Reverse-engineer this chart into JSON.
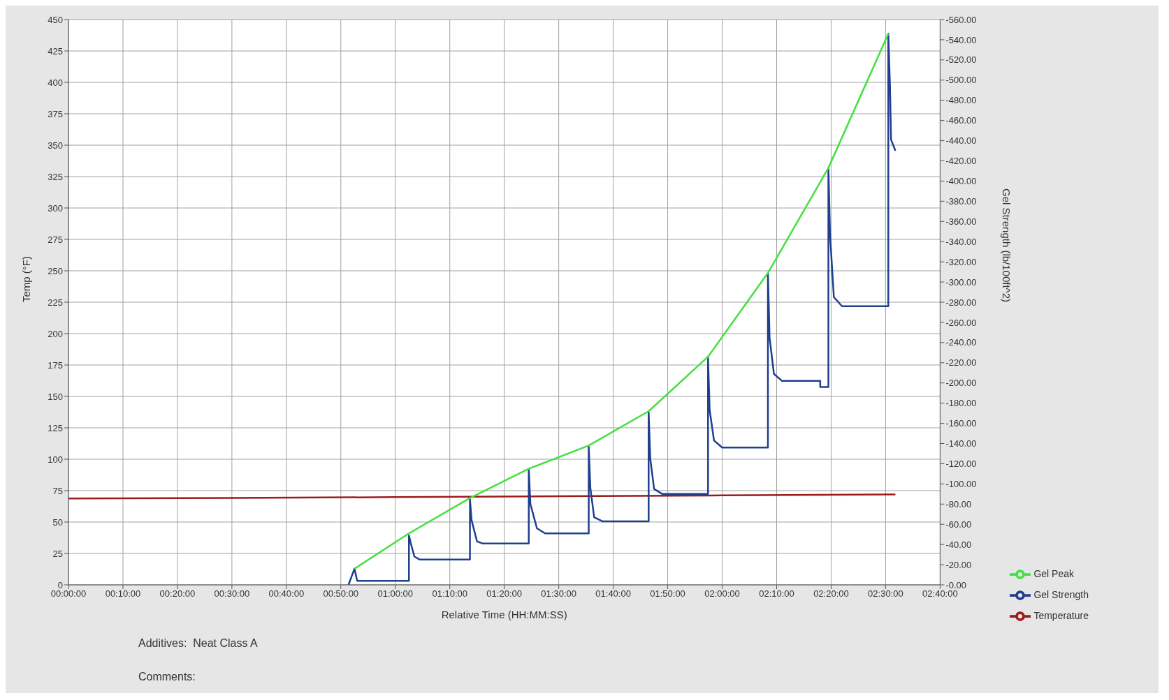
{
  "chart_data": {
    "type": "line",
    "xlabel": "Relative Time (HH:MM:SS)",
    "ylabel": "Temp (°F)",
    "y2label": "Gel Strength (lb/100ft^2)",
    "xlim": [
      0,
      2.6667
    ],
    "xticks": [
      {
        "value": 0,
        "label": "00:00:00"
      },
      {
        "value": 0.1667,
        "label": "00:10:00"
      },
      {
        "value": 0.3333,
        "label": "00:20:00"
      },
      {
        "value": 0.5,
        "label": "00:30:00"
      },
      {
        "value": 0.6667,
        "label": "00:40:00"
      },
      {
        "value": 0.8333,
        "label": "00:50:00"
      },
      {
        "value": 1,
        "label": "01:00:00"
      },
      {
        "value": 1.1667,
        "label": "01:10:00"
      },
      {
        "value": 1.3333,
        "label": "01:20:00"
      },
      {
        "value": 1.5,
        "label": "01:30:00"
      },
      {
        "value": 1.6667,
        "label": "01:40:00"
      },
      {
        "value": 1.8333,
        "label": "01:50:00"
      },
      {
        "value": 2,
        "label": "02:00:00"
      },
      {
        "value": 2.1667,
        "label": "02:10:00"
      },
      {
        "value": 2.3333,
        "label": "02:20:00"
      },
      {
        "value": 2.5,
        "label": "02:30:00"
      },
      {
        "value": 2.6667,
        "label": "02:40:00"
      }
    ],
    "ylim": [
      0,
      450
    ],
    "yticks": [
      0,
      25,
      50,
      75,
      100,
      125,
      150,
      175,
      200,
      225,
      250,
      275,
      300,
      325,
      350,
      375,
      400,
      425,
      450
    ],
    "y2lim": [
      0,
      -560
    ],
    "y2ticks": [
      {
        "value": 0,
        "label": "-0.00"
      },
      {
        "value": -20,
        "label": "-20.00"
      },
      {
        "value": -40,
        "label": "-40.00"
      },
      {
        "value": -60,
        "label": "-60.00"
      },
      {
        "value": -80,
        "label": "-80.00"
      },
      {
        "value": -100,
        "label": "-100.00"
      },
      {
        "value": -120,
        "label": "-120.00"
      },
      {
        "value": -140,
        "label": "-140.00"
      },
      {
        "value": -160,
        "label": "-160.00"
      },
      {
        "value": -180,
        "label": "-180.00"
      },
      {
        "value": -200,
        "label": "-200.00"
      },
      {
        "value": -220,
        "label": "-220.00"
      },
      {
        "value": -240,
        "label": "-240.00"
      },
      {
        "value": -260,
        "label": "-260.00"
      },
      {
        "value": -280,
        "label": "-280.00"
      },
      {
        "value": -300,
        "label": "-300.00"
      },
      {
        "value": -320,
        "label": "-320.00"
      },
      {
        "value": -340,
        "label": "-340.00"
      },
      {
        "value": -360,
        "label": "-360.00"
      },
      {
        "value": -380,
        "label": "-380.00"
      },
      {
        "value": -400,
        "label": "-400.00"
      },
      {
        "value": -420,
        "label": "-420.00"
      },
      {
        "value": -440,
        "label": "-440.00"
      },
      {
        "value": -460,
        "label": "-460.00"
      },
      {
        "value": -480,
        "label": "-480.00"
      },
      {
        "value": -500,
        "label": "-500.00"
      },
      {
        "value": -520,
        "label": "-520.00"
      },
      {
        "value": -540,
        "label": "-540.00"
      },
      {
        "value": -560,
        "label": "-560.00"
      }
    ],
    "grid": true,
    "legend": "bottom right",
    "marker": "none",
    "line_style": "solid",
    "annotations": [
      "Additives:  Neat Class A",
      "Comments:"
    ],
    "series": [
      {
        "name": "Temperature",
        "color": "#9b1c1c",
        "x": [
          0,
          0.5,
          1,
          1.5,
          2,
          2.53
        ],
        "values": [
          68.8,
          69.2,
          69.8,
          70.5,
          71.2,
          72
        ]
      },
      {
        "name": "Gel Strength",
        "color": "#1f3f8f",
        "axis": "y2",
        "x": [
          0.8567,
          0.875,
          0.8833,
          1.0417,
          1.0417,
          1.0467,
          1.0583,
          1.075,
          1.2283,
          1.2283,
          1.2333,
          1.25,
          1.2667,
          1.4083,
          1.4083,
          1.4133,
          1.4333,
          1.4583,
          1.5917,
          1.5917,
          1.5967,
          1.6083,
          1.6333,
          1.775,
          1.775,
          1.78,
          1.7917,
          1.8167,
          1.9567,
          1.9567,
          1.9617,
          1.975,
          2,
          2.14,
          2.14,
          2.145,
          2.1583,
          2.1833,
          2.3,
          2.3,
          2.325,
          2.325,
          2.33,
          2.3417,
          2.3667,
          2.5083,
          2.5083,
          2.5133,
          2.5167,
          2.53
        ],
        "values": [
          0,
          -16,
          -4,
          -4,
          -49,
          -42,
          -28,
          -25,
          -25,
          -85,
          -64,
          -43,
          -41,
          -41,
          -114,
          -80,
          -56,
          -51,
          -51,
          -137,
          -96,
          -67,
          -63,
          -63,
          -171,
          -125,
          -95,
          -90,
          -90,
          -226,
          -173,
          -143,
          -136,
          -136,
          -309,
          -245,
          -209,
          -202,
          -202,
          -196,
          -196,
          -413,
          -347,
          -285,
          -276,
          -276,
          -546,
          -495,
          -441,
          -430
        ]
      },
      {
        "name": "Gel Peak",
        "color": "#44e040",
        "axis": "y2",
        "x": [
          0.875,
          1.0417,
          1.2283,
          1.4083,
          1.5917,
          1.775,
          1.9567,
          2.14,
          2.325,
          2.5083
        ],
        "values": [
          -16,
          -51,
          -86,
          -115,
          -138,
          -172,
          -226,
          -309,
          -413,
          -546
        ]
      }
    ]
  }
}
